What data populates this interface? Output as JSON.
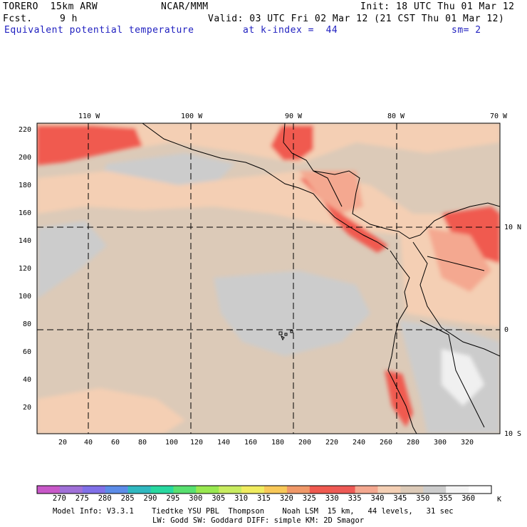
{
  "header": {
    "model": "TORERO  15km ARW",
    "center": "NCAR/MMM",
    "init": "Init: 18 UTC Thu 01 Mar 12",
    "fcst_label": "Fcst.",
    "fcst_value": "9 h",
    "valid": "Valid: 03 UTC Fri 02 Mar 12 (21 CST Thu 01 Mar 12)",
    "field": "Equivalent potential temperature",
    "level": "at k-index =  44",
    "smoothing": "sm= 2"
  },
  "map": {
    "top_longitudes": [
      "110 W",
      "100 W",
      "90 W",
      "80 W",
      "70 W"
    ],
    "right_latitudes": [
      "10 N",
      "0",
      "10 S"
    ],
    "y_ticks": [
      "220",
      "200",
      "180",
      "160",
      "140",
      "120",
      "100",
      "80",
      "60",
      "40",
      "20"
    ],
    "x_ticks": [
      "20",
      "40",
      "60",
      "80",
      "100",
      "120",
      "140",
      "160",
      "180",
      "200",
      "220",
      "240",
      "260",
      "280",
      "300",
      "320"
    ]
  },
  "colorbar": {
    "unit": "K",
    "labels": [
      "270",
      "275",
      "280",
      "285",
      "290",
      "295",
      "300",
      "305",
      "310",
      "315",
      "320",
      "325",
      "330",
      "335",
      "340",
      "345",
      "350",
      "355",
      "360"
    ],
    "colors": [
      "#c858c8",
      "#a070d8",
      "#8070e8",
      "#5c8ce8",
      "#30b8c0",
      "#28d8a0",
      "#58e070",
      "#98e850",
      "#c8ec60",
      "#f0ec60",
      "#f8c858",
      "#f09868",
      "#f05a50",
      "#ee5a56",
      "#f4a890",
      "#f4cfb4",
      "#dccab8",
      "#cccccc",
      "#f4f4f4",
      "#ffffff"
    ]
  },
  "footer": {
    "line1": "Model Info: V3.3.1    Tiedtke YSU PBL  Thompson    Noah LSM  15 km,   44 levels,   31 sec",
    "line2": "LW: Godd SW: Goddard DIFF: simple KM: 2D Smagor"
  }
}
